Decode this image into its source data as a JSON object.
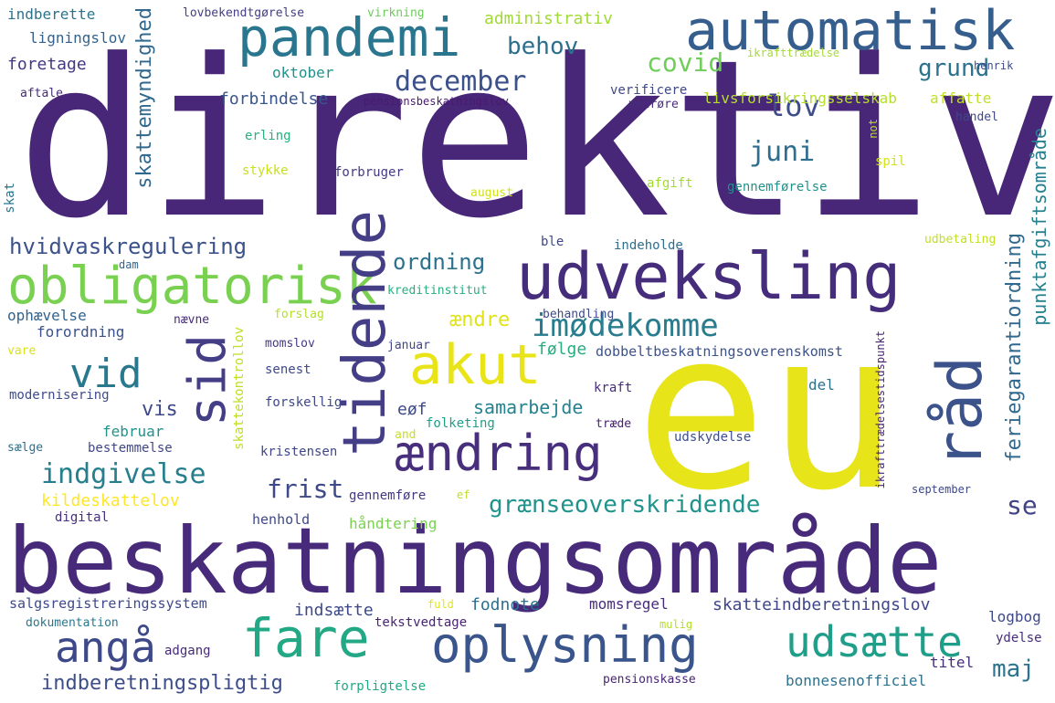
{
  "words": [
    {
      "text": "direktiv",
      "color": "#482778"
    },
    {
      "text": "eu",
      "color": "#e7e41a"
    },
    {
      "text": "beskatningsområde",
      "color": "#472a7a"
    },
    {
      "text": "automatisk",
      "color": "#355e8d"
    },
    {
      "text": "pandemi",
      "color": "#2a768e"
    },
    {
      "text": "udveksling",
      "color": "#462d7b"
    },
    {
      "text": "obligatorisk",
      "color": "#7ad151"
    },
    {
      "text": "tidende",
      "color": "#433e85"
    },
    {
      "text": "sid",
      "color": "#433e85"
    },
    {
      "text": "akut",
      "color": "#e8e418"
    },
    {
      "text": "råd",
      "color": "#3b528b"
    },
    {
      "text": "ændring",
      "color": "#472f7d"
    },
    {
      "text": "fare",
      "color": "#22a884"
    },
    {
      "text": "oplysning",
      "color": "#3a548c"
    },
    {
      "text": "angå",
      "color": "#3e4989"
    },
    {
      "text": "udsætte",
      "color": "#1f9e89"
    },
    {
      "text": "imødekomme",
      "color": "#287c8e"
    },
    {
      "text": "vid",
      "color": "#2a788e"
    },
    {
      "text": "december",
      "color": "#3b518b"
    },
    {
      "text": "lov",
      "color": "#3e4c8a"
    },
    {
      "text": "covid",
      "color": "#6ece58"
    },
    {
      "text": "behov",
      "color": "#2d708e"
    },
    {
      "text": "grund",
      "color": "#2c728e"
    },
    {
      "text": "juni",
      "color": "#2e6e8e"
    },
    {
      "text": "indgivelse",
      "color": "#277f8e"
    },
    {
      "text": "grænseoverskridende",
      "color": "#20938c"
    },
    {
      "text": "hvidvaskregulering",
      "color": "#3b528b"
    },
    {
      "text": "skattemyndighed",
      "color": "#31688e"
    },
    {
      "text": "frist",
      "color": "#3e4989"
    },
    {
      "text": "ordning",
      "color": "#2c718e"
    },
    {
      "text": "feriegarantiordning",
      "color": "#31688e"
    },
    {
      "text": "punktafgiftsområde",
      "color": "#26818e"
    },
    {
      "text": "se",
      "color": "#414487"
    },
    {
      "text": "maj",
      "color": "#2c738e"
    },
    {
      "text": "ændre",
      "color": "#e0e318"
    },
    {
      "text": "vis",
      "color": "#3e4989"
    },
    {
      "text": "samarbejde",
      "color": "#26828e"
    },
    {
      "text": "indberetningspligtig",
      "color": "#3d4e8a"
    },
    {
      "text": "indberette",
      "color": "#2c738e"
    },
    {
      "text": "ligningslov",
      "color": "#33638d"
    },
    {
      "text": "foretage",
      "color": "#453882"
    },
    {
      "text": "aftale",
      "color": "#472c7a"
    },
    {
      "text": "lovbekendtgørelse",
      "color": "#433e85"
    },
    {
      "text": "virkning",
      "color": "#6ccd5a"
    },
    {
      "text": "administrativ",
      "color": "#a2da37"
    },
    {
      "text": "oktober",
      "color": "#21918c"
    },
    {
      "text": "forbindelse",
      "color": "#39568c"
    },
    {
      "text": "pensionsbeskatningslov",
      "color": "#481b6d"
    },
    {
      "text": "verificere",
      "color": "#3f4788"
    },
    {
      "text": "vedrøre",
      "color": "#472c7a"
    },
    {
      "text": "livsforsikringsselskab",
      "color": "#b5de2b"
    },
    {
      "text": "affatte",
      "color": "#c2df23"
    },
    {
      "text": "ikrafttrædelse",
      "color": "#a5db36"
    },
    {
      "text": "henrik",
      "color": "#3e4989"
    },
    {
      "text": "handel",
      "color": "#3f4889"
    },
    {
      "text": "not",
      "color": "#b8de29"
    },
    {
      "text": "spil",
      "color": "#d2e21b"
    },
    {
      "text": "erling",
      "color": "#29af7f"
    },
    {
      "text": "stykke",
      "color": "#c8e020"
    },
    {
      "text": "forbruger",
      "color": "#443983"
    },
    {
      "text": "august",
      "color": "#d2e21b"
    },
    {
      "text": "afgift",
      "color": "#a5db36"
    },
    {
      "text": "gennemførelse",
      "color": "#21918c"
    },
    {
      "text": "skat",
      "color": "#2a778e"
    },
    {
      "text": "dam",
      "color": "#33638d"
    },
    {
      "text": "ble",
      "color": "#3f4788"
    },
    {
      "text": "indeholde",
      "color": "#2e6f8e"
    },
    {
      "text": "udbetaling",
      "color": "#c0df25"
    },
    {
      "text": "kreditinstitut",
      "color": "#29af7f"
    },
    {
      "text": "ophævelse",
      "color": "#33638d"
    },
    {
      "text": "forordning",
      "color": "#3b528b"
    },
    {
      "text": "nævne",
      "color": "#472c7a"
    },
    {
      "text": "behandling",
      "color": "#3e4a89"
    },
    {
      "text": "forslag",
      "color": "#b5de2b"
    },
    {
      "text": "momslov",
      "color": "#443a83"
    },
    {
      "text": "vare",
      "color": "#d8e219"
    },
    {
      "text": "januar",
      "color": "#3f4788"
    },
    {
      "text": "følge",
      "color": "#27ad81"
    },
    {
      "text": "dobbeltbeskatningsoverenskomst",
      "color": "#3b528b"
    },
    {
      "text": "skattekontrollov",
      "color": "#bddf26"
    },
    {
      "text": "senest",
      "color": "#3e4a89"
    },
    {
      "text": "ikrafttrædelsestidspunkt",
      "color": "#482374"
    },
    {
      "text": "modernisering",
      "color": "#3e4c8a"
    },
    {
      "text": "forskellig",
      "color": "#3f4788"
    },
    {
      "text": "kraft",
      "color": "#472c7a"
    },
    {
      "text": "del",
      "color": "#2d708e"
    },
    {
      "text": "eøf",
      "color": "#3e4989"
    },
    {
      "text": "februar",
      "color": "#21918c"
    },
    {
      "text": "folketing",
      "color": "#1f9e89"
    },
    {
      "text": "træde",
      "color": "#482173"
    },
    {
      "text": "sælge",
      "color": "#2c718e"
    },
    {
      "text": "bestemmelse",
      "color": "#3f4788"
    },
    {
      "text": "kristensen",
      "color": "#3f4788"
    },
    {
      "text": "and",
      "color": "#c8e020"
    },
    {
      "text": "udskydelse",
      "color": "#3d4e8a"
    },
    {
      "text": "kildeskattelov",
      "color": "#fde725"
    },
    {
      "text": "gennemføre",
      "color": "#453781"
    },
    {
      "text": "ef",
      "color": "#bddf26"
    },
    {
      "text": "september",
      "color": "#3f4788"
    },
    {
      "text": "digital",
      "color": "#472f7d"
    },
    {
      "text": "henhold",
      "color": "#3e4989"
    },
    {
      "text": "håndtering",
      "color": "#7ad151"
    },
    {
      "text": "salgsregistreringssystem",
      "color": "#3e4989"
    },
    {
      "text": "indsætte",
      "color": "#3e4989"
    },
    {
      "text": "fodnote",
      "color": "#2d708e"
    },
    {
      "text": "momsregel",
      "color": "#472c7a"
    },
    {
      "text": "skatteindberetningslov",
      "color": "#3f4788"
    },
    {
      "text": "fuld",
      "color": "#e2e418"
    },
    {
      "text": "dokumentation",
      "color": "#2a778e"
    },
    {
      "text": "tekstvedtage",
      "color": "#482374"
    },
    {
      "text": "mulig",
      "color": "#b5de2b"
    },
    {
      "text": "logbog",
      "color": "#3e4989"
    },
    {
      "text": "ydelse",
      "color": "#472c7a"
    },
    {
      "text": "adgang",
      "color": "#472a7a"
    },
    {
      "text": "titel",
      "color": "#472c7a"
    },
    {
      "text": "pensionskasse",
      "color": "#482374"
    },
    {
      "text": "bonnesenofficiel",
      "color": "#2c728e"
    },
    {
      "text": "forpligtelse",
      "color": "#22a884"
    }
  ]
}
